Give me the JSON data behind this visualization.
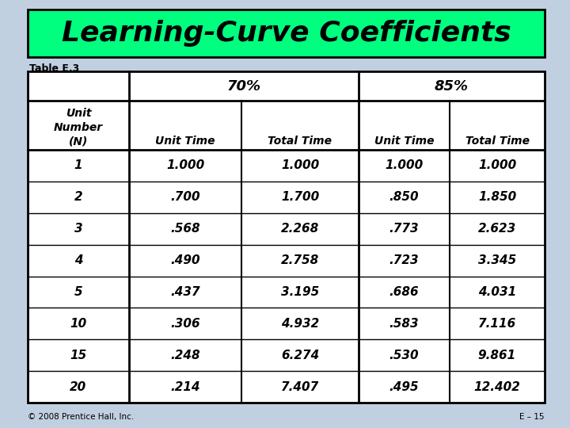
{
  "title": "Learning-Curve Coefficients",
  "title_bg": "#00FF7F",
  "subtitle": "Table E.3",
  "footer_left": "© 2008 Prentice Hall, Inc.",
  "footer_right": "E – 15",
  "bg_color": "#C0D0E0",
  "headers_row2": [
    "Unit\nNumber\n(N)",
    "Unit Time",
    "Total Time",
    "Unit Time",
    "Total Time"
  ],
  "data": [
    [
      "1",
      "1.000",
      "1.000",
      "1.000",
      "1.000"
    ],
    [
      "2",
      ".700",
      "1.700",
      ".850",
      "1.850"
    ],
    [
      "3",
      ".568",
      "2.268",
      ".773",
      "2.623"
    ],
    [
      "4",
      ".490",
      "2.758",
      ".723",
      "3.345"
    ],
    [
      "5",
      ".437",
      "3.195",
      ".686",
      "4.031"
    ],
    [
      "10",
      ".306",
      "4.932",
      ".583",
      "7.116"
    ],
    [
      "15",
      ".248",
      "6.274",
      ".530",
      "9.861"
    ],
    [
      "20",
      ".214",
      "7.407",
      ".495",
      "12.402"
    ]
  ]
}
